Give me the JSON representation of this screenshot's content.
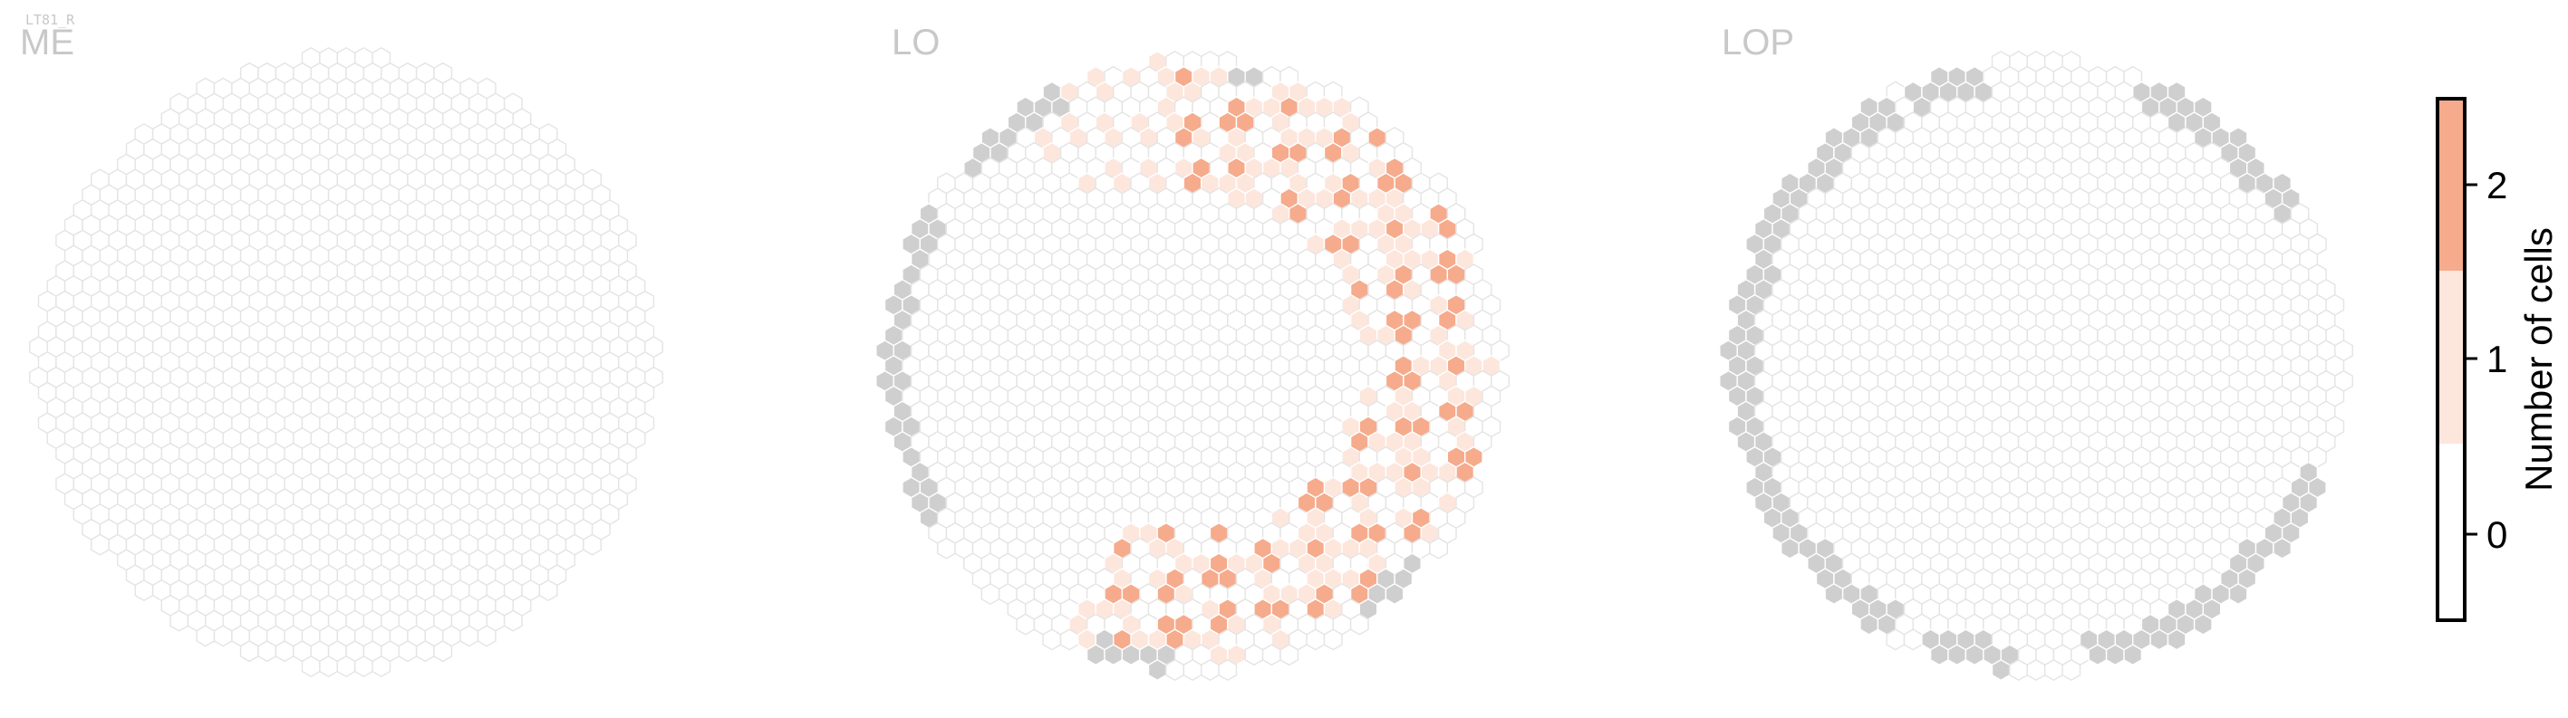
{
  "cell_type": "LT81_R",
  "panels": [
    {
      "title": "ME"
    },
    {
      "title": "LO"
    },
    {
      "title": "LOP"
    }
  ],
  "colors": {
    "empty_fill": "#ffffff",
    "empty_stroke": "#e4e4e4",
    "one_cell": "#fde6dc",
    "two_cells": "#f6ab8c",
    "no_data": "#cfcfcf"
  },
  "colorbar": {
    "label": "Number of cells",
    "ticks": [
      "0",
      "1",
      "2"
    ],
    "bins": [
      {
        "value": 0,
        "color": "#ffffff"
      },
      {
        "value": 1,
        "color": "#fde6dc"
      },
      {
        "value": 2,
        "color": "#f6ab8c"
      }
    ]
  },
  "chart_data": {
    "type": "heatmap",
    "description": "Hexagonal column map per optic-lobe neuropil; each hexagon is one column coloured by the number of LT81_R cells innervating it",
    "legend": "right",
    "panels": [
      {
        "name": "ME",
        "counts": {
          "0": "all columns"
        },
        "nonzero_cells": []
      },
      {
        "name": "LO",
        "two_cell_columns": [
          [
            12,
            1
          ],
          [
            13,
            2
          ],
          [
            13,
            3
          ],
          [
            12,
            3
          ],
          [
            14,
            4
          ],
          [
            14,
            5
          ],
          [
            15,
            5
          ],
          [
            16,
            6
          ],
          [
            17,
            6
          ],
          [
            16,
            7
          ],
          [
            17,
            9
          ],
          [
            18,
            10
          ],
          [
            17,
            11
          ],
          [
            18,
            12
          ],
          [
            17,
            13
          ],
          [
            18,
            14
          ],
          [
            17,
            15
          ],
          [
            16,
            17
          ],
          [
            15,
            17
          ],
          [
            16,
            18
          ],
          [
            16,
            19
          ],
          [
            14,
            21
          ],
          [
            13,
            22
          ],
          [
            12,
            23
          ],
          [
            11,
            22
          ],
          [
            10,
            22
          ],
          [
            9,
            22
          ],
          [
            8,
            23
          ],
          [
            7,
            23
          ],
          [
            6,
            22
          ],
          [
            5,
            23
          ],
          [
            4,
            23
          ],
          [
            12,
            24
          ],
          [
            13,
            20
          ],
          [
            14,
            19
          ]
        ],
        "one_cell_columns": [
          [
            6,
            1
          ],
          [
            7,
            1
          ],
          [
            8,
            2
          ],
          [
            9,
            1
          ],
          [
            10,
            2
          ],
          [
            11,
            2
          ],
          [
            7,
            3
          ],
          [
            9,
            3
          ],
          [
            10,
            4
          ],
          [
            11,
            4
          ],
          [
            12,
            5
          ],
          [
            13,
            5
          ],
          [
            14,
            6
          ],
          [
            15,
            7
          ],
          [
            14,
            7
          ],
          [
            15,
            8
          ],
          [
            16,
            8
          ],
          [
            15,
            9
          ],
          [
            16,
            10
          ],
          [
            17,
            10
          ],
          [
            18,
            11
          ],
          [
            19,
            12
          ],
          [
            18,
            13
          ],
          [
            19,
            13
          ],
          [
            18,
            15
          ],
          [
            17,
            16
          ],
          [
            18,
            16
          ],
          [
            16,
            15
          ],
          [
            15,
            16
          ],
          [
            14,
            18
          ],
          [
            13,
            18
          ],
          [
            15,
            19
          ],
          [
            14,
            20
          ],
          [
            13,
            21
          ],
          [
            11,
            21
          ],
          [
            10,
            21
          ],
          [
            9,
            21
          ],
          [
            8,
            22
          ],
          [
            7,
            22
          ],
          [
            6,
            23
          ],
          [
            5,
            22
          ],
          [
            4,
            22
          ],
          [
            3,
            23
          ],
          [
            5,
            24
          ],
          [
            7,
            24
          ],
          [
            9,
            24
          ],
          [
            11,
            24
          ],
          [
            6,
            6
          ],
          [
            8,
            6
          ],
          [
            4,
            3
          ],
          [
            5,
            2
          ],
          [
            4,
            2
          ]
        ],
        "no_data_columns": [
          [
            11,
            0
          ],
          [
            13,
            1
          ],
          [
            1,
            2
          ],
          [
            1,
            3
          ],
          [
            0,
            7
          ],
          [
            0,
            11
          ],
          [
            0,
            16
          ],
          [
            18,
            17
          ],
          [
            17,
            19
          ],
          [
            16,
            21
          ],
          [
            15,
            23
          ],
          [
            13,
            24
          ],
          [
            10,
            25
          ],
          [
            8,
            25
          ],
          [
            6,
            25
          ],
          [
            4,
            25
          ]
        ]
      },
      {
        "name": "LOP",
        "counts": {
          "1": 0,
          "2": 0
        },
        "no_data_columns": "outer rim columns"
      }
    ]
  }
}
